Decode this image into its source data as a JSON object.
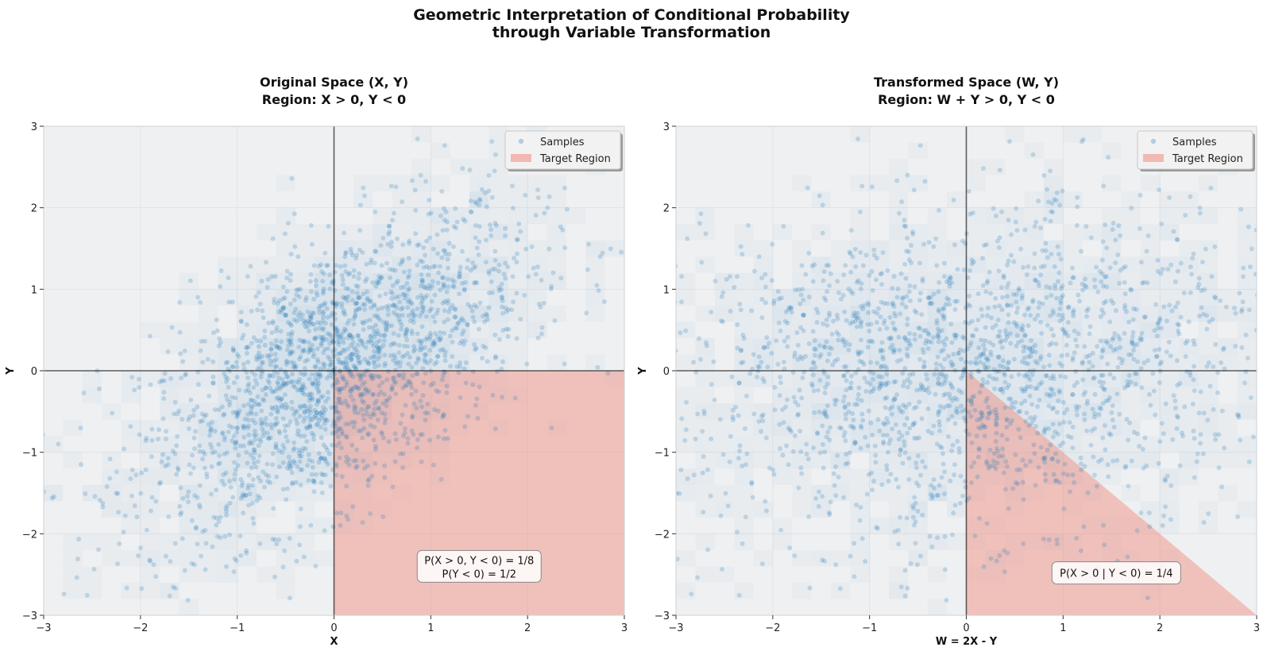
{
  "figure": {
    "title_line1": "Geometric Interpretation of Conditional Probability",
    "title_line2": "through Variable Transformation"
  },
  "chart_data": [
    {
      "type": "scatter",
      "title_line1": "Original Space (X, Y)",
      "title_line2": "Region: X > 0, Y < 0",
      "xlabel": "X",
      "ylabel": "Y",
      "xlim": [
        -3,
        3
      ],
      "ylim": [
        -3,
        3
      ],
      "xticks": [
        -3,
        -2,
        -1,
        0,
        1,
        2,
        3
      ],
      "yticks": [
        -3,
        -2,
        -1,
        0,
        1,
        2,
        3
      ],
      "xtick_labels": [
        "−3",
        "−2",
        "−1",
        "0",
        "1",
        "2",
        "3"
      ],
      "ytick_labels": [
        "−3",
        "−2",
        "−1",
        "0",
        "1",
        "2",
        "3"
      ],
      "grid": true,
      "legend": {
        "position": "top-right",
        "entries": [
          "Samples",
          "Target Region"
        ]
      },
      "series": [
        {
          "name": "Samples",
          "kind": "scatter",
          "color": "#1f77b4",
          "distribution": "bivariate normal, correlation 0.6",
          "n_points": 2000
        },
        {
          "name": "Target Region",
          "kind": "polygon",
          "color": "#f08070",
          "vertices": [
            [
              0,
              0
            ],
            [
              3,
              0
            ],
            [
              3,
              -3
            ],
            [
              0,
              -3
            ]
          ]
        }
      ],
      "annotation": {
        "line1": "P(X > 0, Y < 0) = 1/8",
        "line2": "P(Y < 0) = 1/2",
        "x": 1.5,
        "y": -2.4
      },
      "axis_lines": {
        "x": 0,
        "y": 0
      }
    },
    {
      "type": "scatter",
      "title_line1": "Transformed Space (W, Y)",
      "title_line2": "Region: W + Y > 0, Y < 0",
      "xlabel": "W = 2X - Y",
      "ylabel": "Y",
      "xlim": [
        -3,
        3
      ],
      "ylim": [
        -3,
        3
      ],
      "xticks": [
        -3,
        -2,
        -1,
        0,
        1,
        2,
        3
      ],
      "yticks": [
        -3,
        -2,
        -1,
        0,
        1,
        2,
        3
      ],
      "xtick_labels": [
        "−3",
        "−2",
        "−1",
        "0",
        "1",
        "2",
        "3"
      ],
      "ytick_labels": [
        "−3",
        "−2",
        "−1",
        "0",
        "1",
        "2",
        "3"
      ],
      "grid": true,
      "legend": {
        "position": "top-right",
        "entries": [
          "Samples",
          "Target Region"
        ]
      },
      "series": [
        {
          "name": "Samples",
          "kind": "scatter",
          "color": "#1f77b4",
          "distribution": "W = 2X - Y of the same samples",
          "n_points": 2000
        },
        {
          "name": "Target Region",
          "kind": "polygon",
          "color": "#f08070",
          "vertices": [
            [
              0,
              0
            ],
            [
              3,
              -3
            ],
            [
              0,
              -3
            ]
          ]
        }
      ],
      "annotation": {
        "line1": "P(X > 0 | Y < 0) = 1/4",
        "line2": "",
        "x": 1.55,
        "y": -2.48
      },
      "axis_lines": {
        "x": 0,
        "y": 0
      }
    }
  ]
}
